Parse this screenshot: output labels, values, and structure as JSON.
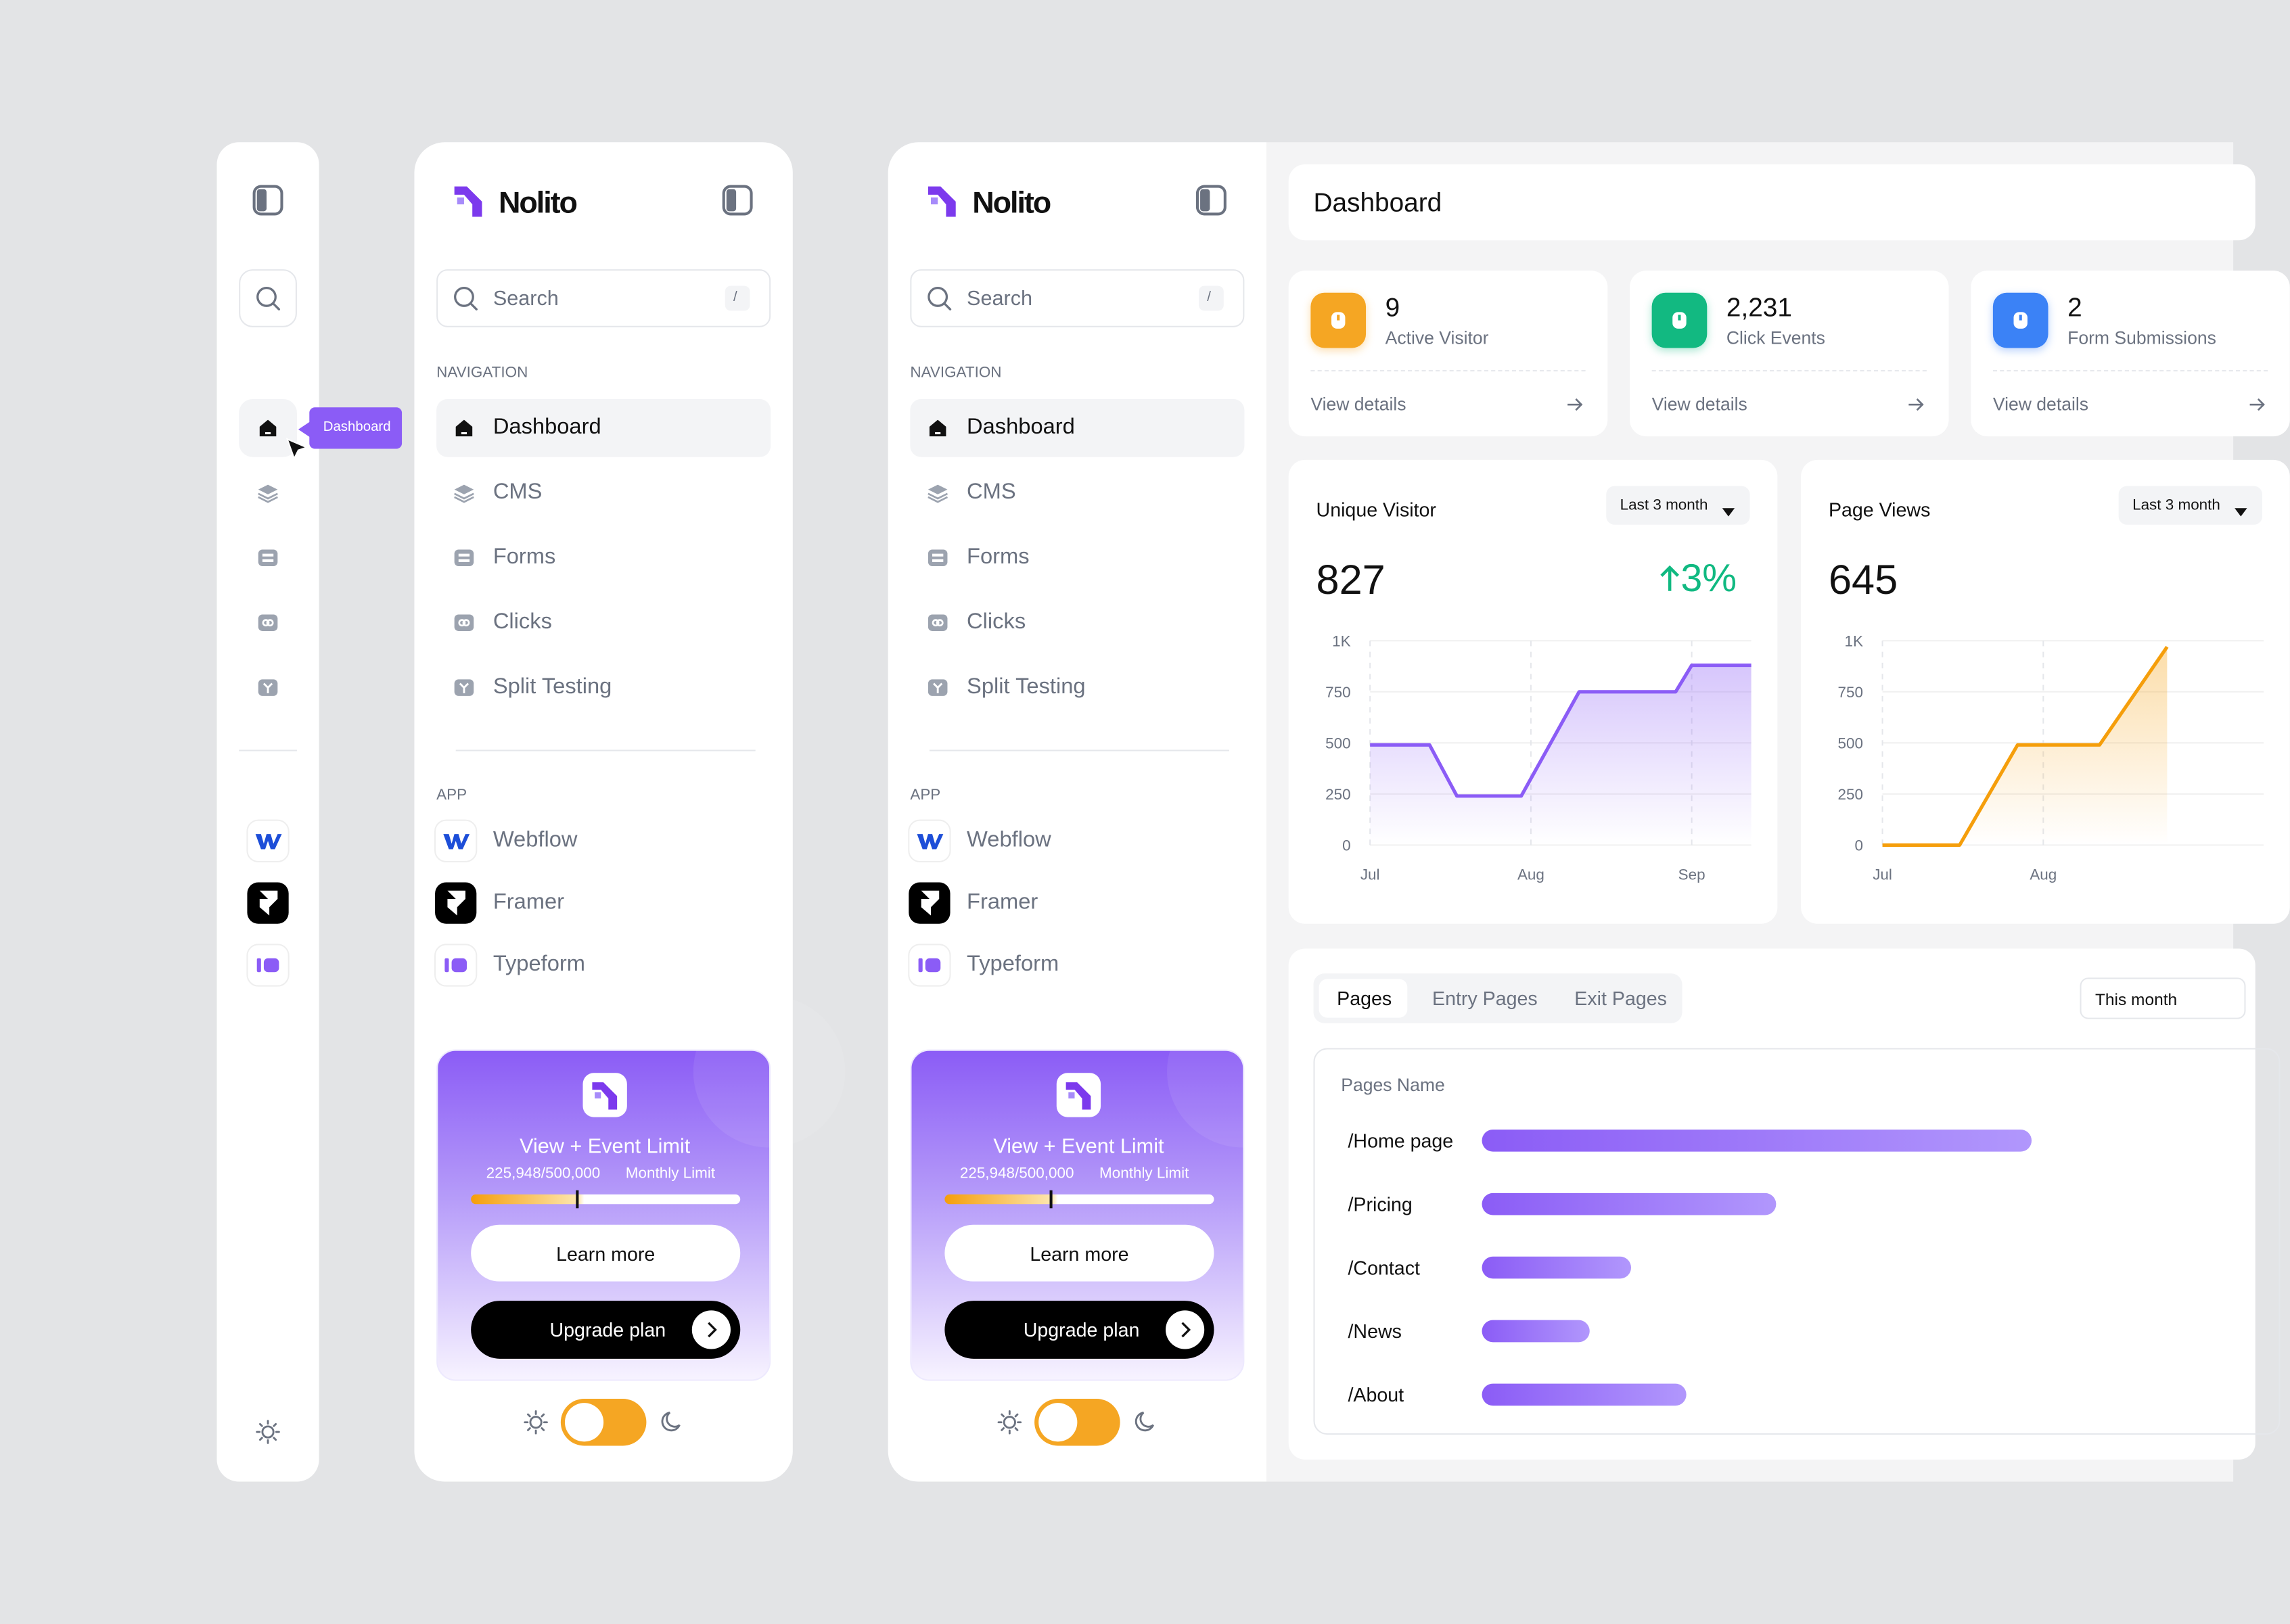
{
  "sidebar": {
    "brand": "Nolito",
    "search": "Search",
    "shortcut": "/",
    "nav_heading": "NAVIGATION",
    "nav": [
      {
        "label": "Dashboard"
      },
      {
        "label": "CMS"
      },
      {
        "label": "Forms"
      },
      {
        "label": "Clicks"
      },
      {
        "label": "Split Testing"
      }
    ],
    "app_heading": "APP",
    "apps": [
      {
        "label": "Webflow"
      },
      {
        "label": "Framer"
      },
      {
        "label": "Typeform"
      }
    ],
    "promo": {
      "title": "View + Event Limit",
      "usage": "225,948/500,000",
      "usage_label": "Monthly Limit",
      "learn": "Learn more",
      "upgrade": "Upgrade plan"
    }
  },
  "header": {
    "title": "Dashboard"
  },
  "stats": [
    {
      "value": 9,
      "label": "Active Visitor",
      "link": "View details",
      "color": "#f5a623"
    },
    {
      "value": "2,231",
      "label": "Click Events",
      "link": "View details",
      "color": "#12b981"
    },
    {
      "value": 2,
      "label": "Form Submissions",
      "link": "View details",
      "color": "#3b82f6"
    }
  ],
  "charts": [
    {
      "type": "line",
      "title": "Unique Visitor",
      "range": "Last 3 month",
      "total": 827,
      "change": "3%",
      "color": "#8b5cf6",
      "x": [
        0,
        0.37,
        0.54,
        0.94,
        1.3,
        1.9,
        2.0,
        2.37
      ],
      "values": [
        490,
        490,
        240,
        240,
        750,
        750,
        880,
        880
      ],
      "xlim": [
        0,
        2.37
      ],
      "ylim": [
        0,
        1000
      ],
      "xticks": [
        {
          "value": 0,
          "label": "Jul"
        },
        {
          "value": 1,
          "label": "Aug"
        },
        {
          "value": 2,
          "label": "Sep"
        }
      ],
      "yticks": [
        0,
        250,
        500,
        750,
        {
          "value": 1000,
          "label": "1K"
        }
      ],
      "grid": true
    },
    {
      "type": "line",
      "title": "Page Views",
      "range": "Last 3 month",
      "total": 645,
      "color": "#f59e0b",
      "x": [
        0,
        0.48,
        0.84,
        1.35,
        1.77
      ],
      "values": [
        0,
        0,
        490,
        490,
        970
      ],
      "xlim": [
        0,
        2.37
      ],
      "ylim": [
        0,
        1000
      ],
      "xticks": [
        {
          "value": 0,
          "label": "Jul"
        },
        {
          "value": 1,
          "label": "Aug"
        }
      ],
      "yticks": [
        0,
        250,
        500,
        750,
        {
          "value": 1000,
          "label": "1K"
        }
      ],
      "grid": true
    }
  ],
  "top_pages": {
    "type": "bar",
    "tabs": [
      "Pages",
      "Entry Pages",
      "Exit Pages"
    ],
    "filter": "This month",
    "column": "Pages Name",
    "categories": [
      "/Home page",
      "/Pricing",
      "/Contact",
      "/News",
      "/About"
    ],
    "values": [
      398,
      213,
      108,
      78,
      148
    ],
    "xlim": [
      0,
      500
    ]
  }
}
